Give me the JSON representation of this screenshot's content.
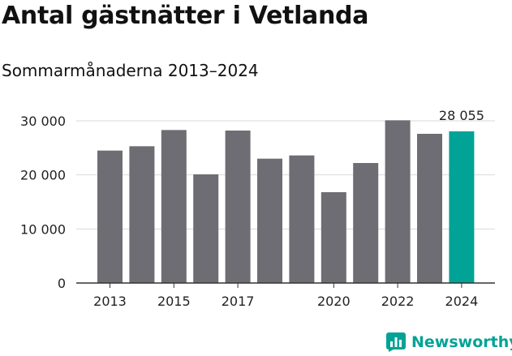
{
  "chart_data": {
    "type": "bar",
    "title": "Antal gästnätter i Vetlanda",
    "subtitle": "Sommarmånaderna 2013–2024",
    "categories": [
      "2013",
      "2014",
      "2015",
      "2016",
      "2017",
      "2018",
      "2019",
      "2020",
      "2021",
      "2022",
      "2023",
      "2024"
    ],
    "values": [
      24500,
      25300,
      28300,
      20100,
      28200,
      23000,
      23600,
      16800,
      22200,
      30100,
      27600,
      28055
    ],
    "x_tick_labels": [
      "2013",
      "",
      "2015",
      "",
      "2017",
      "",
      "",
      "2020",
      "",
      "2022",
      "",
      "2024"
    ],
    "y_ticks": [
      0,
      10000,
      20000,
      30000
    ],
    "y_tick_labels": [
      "0",
      "10 000",
      "20 000",
      "30 000"
    ],
    "ylim": [
      0,
      30000
    ],
    "grid": true,
    "highlight": {
      "index": 11,
      "label": "28 055"
    },
    "colors": {
      "bar": "#6e6d73",
      "highlight": "#00a396",
      "grid": "#d9d9d9",
      "axis": "#333333"
    }
  },
  "brand": {
    "name": "Newsworthy",
    "icon": "newsworthy-chart-icon",
    "color": "#00a396"
  }
}
